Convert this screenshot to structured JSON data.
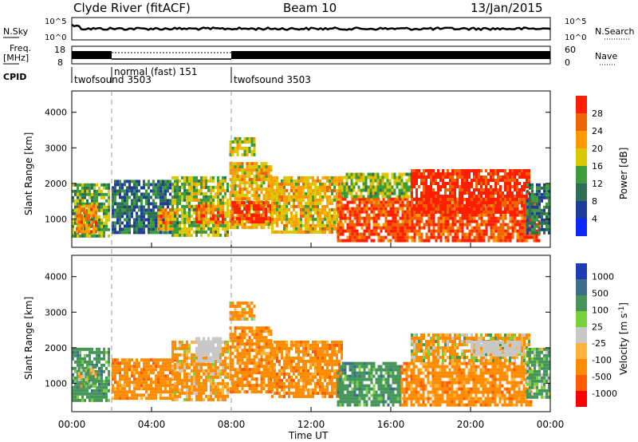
{
  "header": {
    "station": "Clyde River (fitACF)",
    "beam": "Beam 10",
    "date": "13/Jan/2015"
  },
  "noise_panel": {
    "left_label": "N.Sky",
    "right_label": "N.Search",
    "left_ticks": [
      "10^5",
      "10^0"
    ],
    "right_ticks": [
      "10^5",
      "10^0"
    ]
  },
  "freq_panel": {
    "left_label_1": "Freq.",
    "left_label_2": "[MHz]",
    "right_label": "Nave",
    "left_ticks": [
      "18",
      "8"
    ],
    "right_ticks": [
      "60",
      "0"
    ]
  },
  "cpid": {
    "label": "CPID",
    "segments": [
      {
        "name": "twofsound 3503",
        "start_hour": 0.0
      },
      {
        "name": "normal (fast) 151",
        "start_hour": 2.0
      },
      {
        "name": "twofsound 3503",
        "start_hour": 8.0
      }
    ]
  },
  "colors": {
    "power_scale": [
      "#0a28ff",
      "#1e3c9b",
      "#2d6e55",
      "#3c9b3c",
      "#dcc800",
      "#ff9b00",
      "#f06400",
      "#ff1e00"
    ],
    "velocity_scale": [
      "#ff0000",
      "#ff5a00",
      "#ff8c00",
      "#ffb43c",
      "#c8c8c8",
      "#78d23c",
      "#46965a",
      "#3c6e8c",
      "#1e3cb4"
    ]
  },
  "chart_data": [
    {
      "type": "heatmap",
      "panel": "power",
      "ylabel": "Slant Range [km]",
      "xlim": [
        0,
        24
      ],
      "ylim": [
        200,
        4600
      ],
      "yticks": [
        "1000",
        "2000",
        "3000",
        "4000"
      ],
      "xticks": [
        "00:00",
        "04:00",
        "08:00",
        "12:00",
        "16:00",
        "20:00",
        "00:00"
      ],
      "colorbar": {
        "label": "Power [dB]",
        "ticks": [
          "28",
          "24",
          "20",
          "16",
          "12",
          "8",
          "4"
        ],
        "range": [
          0,
          32
        ]
      },
      "echo_regions": [
        {
          "t0": 0.0,
          "t1": 1.9,
          "r0": 500,
          "r1": 2000,
          "value": 14
        },
        {
          "t0": 0.2,
          "t1": 1.2,
          "r0": 600,
          "r1": 1400,
          "value": 24
        },
        {
          "t0": 2.0,
          "t1": 5.3,
          "r0": 600,
          "r1": 2100,
          "value": 10
        },
        {
          "t0": 4.3,
          "t1": 5.2,
          "r0": 700,
          "r1": 1300,
          "value": 24
        },
        {
          "t0": 5.0,
          "t1": 7.8,
          "r0": 500,
          "r1": 2200,
          "value": 16
        },
        {
          "t0": 6.2,
          "t1": 7.6,
          "r0": 900,
          "r1": 1400,
          "value": 26
        },
        {
          "t0": 7.9,
          "t1": 10.0,
          "r0": 800,
          "r1": 2600,
          "value": 20
        },
        {
          "t0": 8.0,
          "t1": 10.0,
          "r0": 900,
          "r1": 1500,
          "value": 28
        },
        {
          "t0": 7.9,
          "t1": 9.2,
          "r0": 2800,
          "r1": 3300,
          "value": 18
        },
        {
          "t0": 10.0,
          "t1": 13.5,
          "r0": 600,
          "r1": 2200,
          "value": 20
        },
        {
          "t0": 13.3,
          "t1": 23.5,
          "r0": 400,
          "r1": 1600,
          "value": 28
        },
        {
          "t0": 13.5,
          "t1": 17.0,
          "r0": 1600,
          "r1": 2300,
          "value": 16
        },
        {
          "t0": 17.0,
          "t1": 23.0,
          "r0": 1200,
          "r1": 2400,
          "value": 30
        },
        {
          "t0": 22.8,
          "t1": 24.0,
          "r0": 600,
          "r1": 2000,
          "value": 10
        }
      ]
    },
    {
      "type": "heatmap",
      "panel": "velocity",
      "ylabel": "Slant Range [km]",
      "xlabel": "Time UT",
      "xlim": [
        0,
        24
      ],
      "ylim": [
        200,
        4600
      ],
      "yticks": [
        "1000",
        "2000",
        "3000",
        "4000"
      ],
      "xticks": [
        "00:00",
        "04:00",
        "08:00",
        "12:00",
        "16:00",
        "20:00",
        "00:00"
      ],
      "colorbar": {
        "label": "Velocity [m s^-1]",
        "ticks": [
          "1000",
          "500",
          "100",
          "25",
          "-25",
          "-100",
          "-500",
          "-1000"
        ]
      },
      "echo_regions": [
        {
          "t0": 0.0,
          "t1": 1.9,
          "r0": 500,
          "r1": 2000,
          "value": 300
        },
        {
          "t0": 0.3,
          "t1": 1.2,
          "r0": 900,
          "r1": 1500,
          "value": 60
        },
        {
          "t0": 2.0,
          "t1": 5.3,
          "r0": 600,
          "r1": 1700,
          "value": -300
        },
        {
          "t0": 5.0,
          "t1": 7.8,
          "r0": 500,
          "r1": 2200,
          "value": -200
        },
        {
          "t0": 6.2,
          "t1": 7.5,
          "r0": 1600,
          "r1": 2300,
          "value": 0
        },
        {
          "t0": 7.9,
          "t1": 10.0,
          "r0": 800,
          "r1": 2600,
          "value": -300
        },
        {
          "t0": 7.9,
          "t1": 9.2,
          "r0": 2800,
          "r1": 3300,
          "value": -200
        },
        {
          "t0": 10.0,
          "t1": 13.5,
          "r0": 600,
          "r1": 2200,
          "value": -300
        },
        {
          "t0": 13.3,
          "t1": 16.5,
          "r0": 400,
          "r1": 1600,
          "value": 300
        },
        {
          "t0": 16.5,
          "t1": 23.0,
          "r0": 400,
          "r1": 1600,
          "value": -300
        },
        {
          "t0": 17.0,
          "t1": 23.0,
          "r0": 1600,
          "r1": 2400,
          "value": -100
        },
        {
          "t0": 20.0,
          "t1": 22.5,
          "r0": 1800,
          "r1": 2200,
          "value": 0
        },
        {
          "t0": 22.8,
          "t1": 24.0,
          "r0": 600,
          "r1": 2000,
          "value": 200
        }
      ]
    }
  ]
}
